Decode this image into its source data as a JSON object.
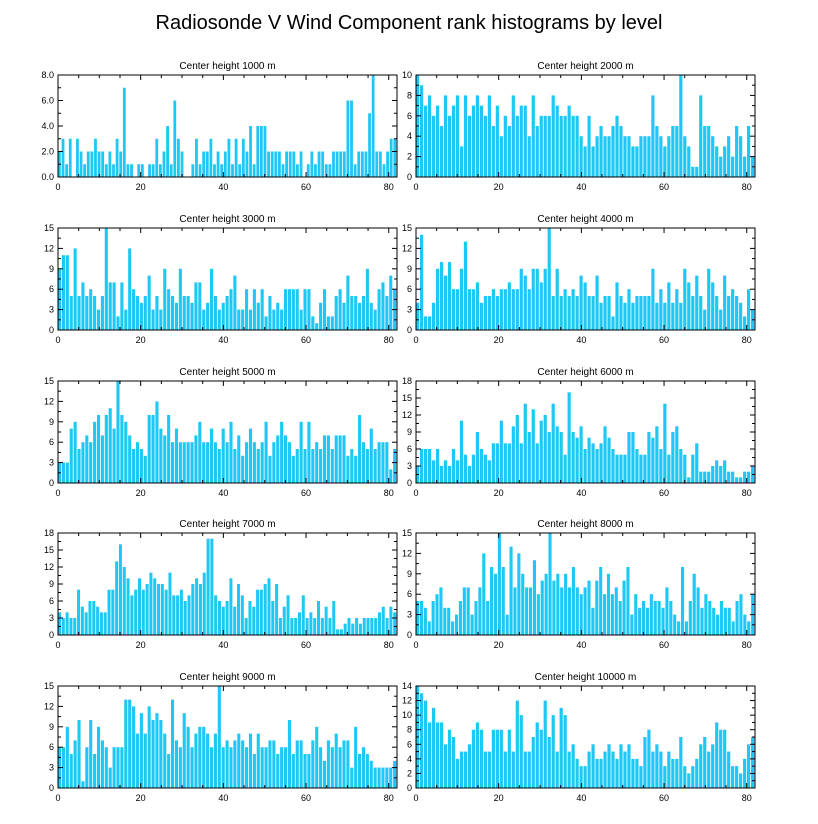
{
  "title": "Radiosonde V Wind Component rank histograms by level",
  "bar_color": "#1ec8f5",
  "chart_data": [
    {
      "type": "bar",
      "title": "Center height 1000 m",
      "xlabel": "",
      "ylabel": "",
      "xlim": [
        0,
        82
      ],
      "ylim": [
        0,
        8
      ],
      "xticks": [
        "0",
        "20",
        "40",
        "60",
        "80"
      ],
      "yticks": [
        "0.0",
        "2.0",
        "4.0",
        "6.0",
        "8.0"
      ],
      "values": [
        2,
        3,
        1,
        3,
        0,
        3,
        2,
        1,
        2,
        2,
        3,
        2,
        2,
        1,
        2,
        1,
        3,
        2,
        7,
        1,
        1,
        0,
        1,
        1,
        0,
        1,
        1,
        3,
        1,
        2,
        4,
        1,
        6,
        3,
        2,
        0,
        0,
        1,
        3,
        1,
        2,
        2,
        3,
        1,
        2,
        1,
        2,
        3,
        1,
        3,
        1,
        3,
        2,
        4,
        1,
        4,
        4,
        4,
        2,
        2,
        2,
        2,
        1,
        2,
        2,
        2,
        1,
        2,
        0,
        1,
        2,
        1,
        2,
        2,
        1,
        1,
        2,
        2,
        2,
        2,
        6,
        6,
        1,
        2,
        2,
        2,
        5,
        8,
        2,
        2,
        1,
        2,
        3,
        3
      ]
    },
    {
      "type": "bar",
      "title": "Center height 2000 m",
      "xlabel": "",
      "ylabel": "",
      "xlim": [
        0,
        82
      ],
      "ylim": [
        0,
        10
      ],
      "xticks": [
        "0",
        "20",
        "40",
        "60",
        "80"
      ],
      "yticks": [
        "0",
        "2",
        "4",
        "6",
        "8",
        "10"
      ],
      "values": [
        10,
        9,
        7,
        8,
        6,
        7,
        5,
        8,
        6,
        7,
        8,
        3,
        8,
        6,
        7,
        8,
        7,
        6,
        8,
        5,
        7,
        4,
        6,
        5,
        8,
        6,
        7,
        7,
        4,
        8,
        5,
        6,
        6,
        6,
        8,
        7,
        6,
        6,
        7,
        6,
        6,
        4,
        3,
        6,
        3,
        4,
        5,
        4,
        4,
        5,
        6,
        5,
        4,
        4,
        3,
        3,
        4,
        4,
        4,
        8,
        5,
        4,
        3,
        4,
        5,
        5,
        10,
        4,
        3,
        1,
        1,
        8,
        5,
        5,
        4,
        3,
        2,
        3,
        4,
        2,
        5,
        4,
        2,
        5,
        2
      ]
    },
    {
      "type": "bar",
      "title": "Center height 3000 m",
      "xlabel": "",
      "ylabel": "",
      "xlim": [
        0,
        82
      ],
      "ylim": [
        0,
        15
      ],
      "xticks": [
        "0",
        "20",
        "40",
        "60",
        "80"
      ],
      "yticks": [
        "0",
        "3",
        "6",
        "9",
        "12",
        "15"
      ],
      "values": [
        9,
        11,
        11,
        5,
        12,
        5,
        7,
        5,
        6,
        5,
        3,
        5,
        15,
        7,
        7,
        2,
        7,
        3,
        12,
        6,
        5,
        4,
        5,
        8,
        3,
        5,
        3,
        9,
        6,
        5,
        4,
        9,
        5,
        5,
        4,
        7,
        7,
        3,
        4,
        9,
        5,
        3,
        4,
        5,
        6,
        8,
        3,
        3,
        6,
        3,
        6,
        4,
        6,
        2,
        5,
        3,
        4,
        3,
        6,
        6,
        6,
        6,
        3,
        6,
        6,
        2,
        1,
        4,
        6,
        2,
        2,
        5,
        6,
        4,
        8,
        5,
        5,
        4,
        5,
        9,
        4,
        3,
        6,
        7,
        5,
        8,
        6
      ]
    },
    {
      "type": "bar",
      "title": "Center height 4000 m",
      "xlabel": "",
      "ylabel": "",
      "xlim": [
        0,
        82
      ],
      "ylim": [
        0,
        15
      ],
      "xticks": [
        "0",
        "20",
        "40",
        "60",
        "80"
      ],
      "yticks": [
        "0",
        "3",
        "6",
        "9",
        "12",
        "15"
      ],
      "values": [
        4,
        14,
        2,
        2,
        4,
        9,
        10,
        8,
        10,
        6,
        6,
        9,
        13,
        6,
        6,
        7,
        4,
        5,
        5,
        6,
        5,
        6,
        6,
        7,
        6,
        6,
        9,
        8,
        6,
        9,
        9,
        7,
        9,
        15,
        5,
        9,
        5,
        6,
        5,
        6,
        5,
        8,
        7,
        5,
        5,
        8,
        4,
        5,
        5,
        2,
        7,
        5,
        4,
        6,
        4,
        5,
        5,
        5,
        5,
        9,
        4,
        6,
        4,
        7,
        4,
        6,
        4,
        9,
        7,
        5,
        8,
        5,
        3,
        9,
        7,
        5,
        3,
        8,
        5,
        6,
        5,
        4,
        2,
        6,
        3
      ]
    },
    {
      "type": "bar",
      "title": "Center height 5000 m",
      "xlabel": "",
      "ylabel": "",
      "xlim": [
        0,
        82
      ],
      "ylim": [
        0,
        15
      ],
      "xticks": [
        "0",
        "20",
        "40",
        "60",
        "80"
      ],
      "yticks": [
        "0",
        "3",
        "6",
        "9",
        "12",
        "15"
      ],
      "values": [
        3,
        3,
        3,
        8,
        9,
        5,
        6,
        7,
        6,
        9,
        10,
        7,
        10,
        11,
        8,
        15,
        10,
        9,
        7,
        5,
        6,
        5,
        4,
        10,
        10,
        12,
        8,
        7,
        10,
        6,
        8,
        6,
        6,
        6,
        6,
        7,
        9,
        6,
        6,
        8,
        6,
        5,
        8,
        6,
        9,
        5,
        7,
        4,
        6,
        8,
        6,
        5,
        6,
        9,
        4,
        6,
        7,
        9,
        7,
        6,
        4,
        5,
        9,
        5,
        9,
        5,
        6,
        5,
        7,
        7,
        5,
        7,
        7,
        7,
        4,
        5,
        4,
        10,
        6,
        5,
        8,
        5,
        6,
        6,
        6,
        2,
        5
      ]
    },
    {
      "type": "bar",
      "title": "Center height 6000 m",
      "xlabel": "",
      "ylabel": "",
      "xlim": [
        0,
        82
      ],
      "ylim": [
        0,
        18
      ],
      "xticks": [
        "0",
        "20",
        "40",
        "60",
        "80"
      ],
      "yticks": [
        "0",
        "3",
        "6",
        "9",
        "12",
        "15",
        "18"
      ],
      "values": [
        3,
        6,
        6,
        6,
        4,
        6,
        3,
        4,
        3,
        6,
        4,
        11,
        5,
        3,
        5,
        9,
        6,
        5,
        4,
        7,
        7,
        11,
        7,
        7,
        10,
        12,
        7,
        14,
        9,
        13,
        7,
        11,
        12,
        9,
        14,
        10,
        9,
        5,
        16,
        9,
        8,
        10,
        6,
        8,
        7,
        6,
        7,
        10,
        8,
        6,
        5,
        5,
        5,
        9,
        9,
        6,
        5,
        5,
        9,
        8,
        10,
        6,
        14,
        5,
        9,
        10,
        6,
        5,
        1,
        5,
        7,
        2,
        2,
        2,
        3,
        4,
        3,
        4,
        2,
        2,
        1,
        1,
        2,
        2,
        3
      ]
    },
    {
      "type": "bar",
      "title": "Center height 7000 m",
      "xlabel": "",
      "ylabel": "",
      "xlim": [
        0,
        82
      ],
      "ylim": [
        0,
        18
      ],
      "xticks": [
        "0",
        "20",
        "40",
        "60",
        "80"
      ],
      "yticks": [
        "0",
        "3",
        "6",
        "9",
        "12",
        "15",
        "18"
      ],
      "values": [
        4,
        3,
        4,
        3,
        3,
        8,
        5,
        4,
        6,
        6,
        5,
        4,
        4,
        8,
        8,
        13,
        16,
        12,
        10,
        7,
        8,
        10,
        8,
        9,
        11,
        10,
        9,
        9,
        8,
        11,
        7,
        7,
        8,
        6,
        7,
        9,
        10,
        9,
        11,
        17,
        17,
        7,
        6,
        5,
        6,
        10,
        5,
        9,
        7,
        3,
        6,
        5,
        8,
        8,
        9,
        10,
        6,
        9,
        3,
        5,
        7,
        3,
        3,
        4,
        7,
        3,
        4,
        3,
        6,
        3,
        5,
        3,
        6,
        1,
        1,
        2,
        3,
        2,
        3,
        2,
        3,
        3,
        3,
        3,
        4,
        5,
        3,
        5,
        4
      ]
    },
    {
      "type": "bar",
      "title": "Center height 8000 m",
      "xlabel": "",
      "ylabel": "",
      "xlim": [
        0,
        82
      ],
      "ylim": [
        0,
        15
      ],
      "xticks": [
        "0",
        "20",
        "40",
        "60",
        "80"
      ],
      "yticks": [
        "0",
        "3",
        "6",
        "9",
        "12",
        "15"
      ],
      "values": [
        5,
        5,
        4,
        2,
        5,
        6,
        7,
        4,
        4,
        2,
        3,
        5,
        7,
        7,
        3,
        5,
        7,
        12,
        5,
        10,
        9,
        15,
        10,
        3,
        13,
        7,
        12,
        9,
        7,
        7,
        11,
        6,
        8,
        9,
        15,
        8,
        9,
        7,
        9,
        7,
        10,
        7,
        6,
        7,
        8,
        4,
        8,
        10,
        6,
        9,
        6,
        7,
        5,
        8,
        10,
        3,
        6,
        4,
        5,
        4,
        6,
        5,
        5,
        4,
        7,
        5,
        3,
        2,
        10,
        2,
        5,
        9,
        7,
        4,
        6,
        5,
        4,
        3,
        5,
        4,
        4,
        2,
        5,
        6,
        3,
        2,
        6
      ]
    },
    {
      "type": "bar",
      "title": "Center height 9000 m",
      "xlabel": "",
      "ylabel": "",
      "xlim": [
        0,
        82
      ],
      "ylim": [
        0,
        15
      ],
      "xticks": [
        "0",
        "20",
        "40",
        "60",
        "80"
      ],
      "yticks": [
        "0",
        "3",
        "6",
        "9",
        "12",
        "15"
      ],
      "values": [
        6,
        6,
        9,
        5,
        7,
        10,
        1,
        6,
        10,
        5,
        9,
        7,
        6,
        3,
        6,
        6,
        6,
        13,
        13,
        12,
        8,
        11,
        8,
        12,
        10,
        11,
        10,
        8,
        5,
        13,
        7,
        6,
        11,
        9,
        6,
        8,
        9,
        9,
        8,
        6,
        8,
        15,
        6,
        7,
        6,
        7,
        8,
        7,
        6,
        8,
        5,
        8,
        6,
        6,
        7,
        7,
        5,
        6,
        6,
        10,
        5,
        7,
        7,
        5,
        5,
        7,
        9,
        6,
        4,
        7,
        6,
        8,
        6,
        7,
        7,
        3,
        9,
        5,
        6,
        5,
        4,
        3,
        3,
        3,
        3,
        3,
        4
      ]
    },
    {
      "type": "bar",
      "title": "Center height 10000 m",
      "xlabel": "",
      "ylabel": "",
      "xlim": [
        0,
        82
      ],
      "ylim": [
        0,
        14
      ],
      "xticks": [
        "0",
        "20",
        "40",
        "60",
        "80"
      ],
      "yticks": [
        "0",
        "2",
        "4",
        "6",
        "8",
        "10",
        "12",
        "14"
      ],
      "values": [
        14,
        13,
        12,
        9,
        11,
        9,
        9,
        6,
        8,
        7,
        4,
        5,
        5,
        6,
        8,
        9,
        8,
        5,
        5,
        8,
        8,
        8,
        5,
        8,
        5,
        12,
        10,
        5,
        5,
        7,
        9,
        8,
        12,
        7,
        10,
        5,
        11,
        10,
        5,
        6,
        4,
        3,
        3,
        5,
        6,
        4,
        4,
        5,
        6,
        5,
        4,
        6,
        5,
        6,
        4,
        4,
        3,
        7,
        8,
        5,
        6,
        5,
        3,
        5,
        4,
        4,
        7,
        3,
        2,
        3,
        4,
        6,
        7,
        5,
        6,
        9,
        8,
        8,
        5,
        3,
        3,
        2,
        4,
        6,
        7
      ]
    }
  ]
}
